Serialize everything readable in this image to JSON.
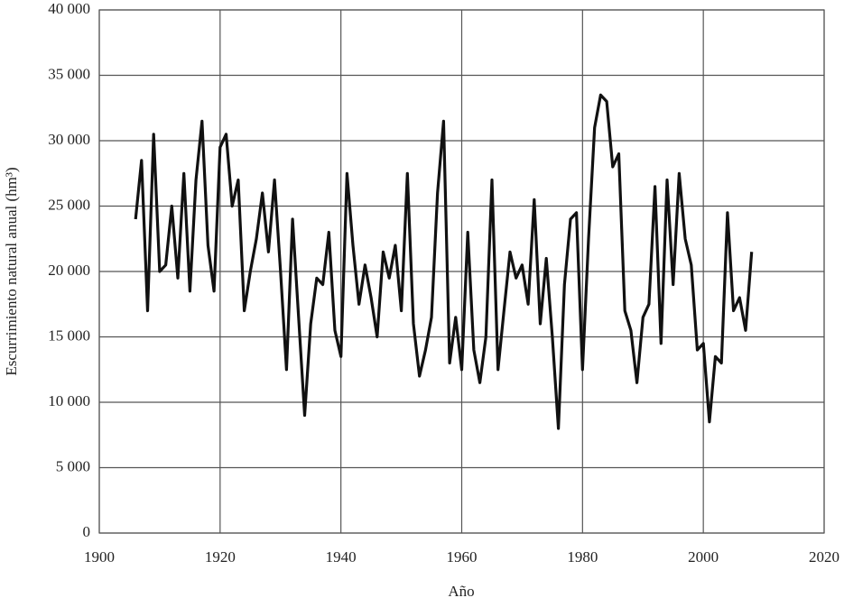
{
  "chart_data": {
    "type": "line",
    "xlabel": "Año",
    "ylabel": "Escurrimiento natural anual (hm³)",
    "x": [
      1906,
      1907,
      1908,
      1909,
      1910,
      1911,
      1912,
      1913,
      1914,
      1915,
      1916,
      1917,
      1918,
      1919,
      1920,
      1921,
      1922,
      1923,
      1924,
      1925,
      1926,
      1927,
      1928,
      1929,
      1930,
      1931,
      1932,
      1933,
      1934,
      1935,
      1936,
      1937,
      1938,
      1939,
      1940,
      1941,
      1942,
      1943,
      1944,
      1945,
      1946,
      1947,
      1948,
      1949,
      1950,
      1951,
      1952,
      1953,
      1954,
      1955,
      1956,
      1957,
      1958,
      1959,
      1960,
      1961,
      1962,
      1963,
      1964,
      1965,
      1966,
      1967,
      1968,
      1969,
      1970,
      1971,
      1972,
      1973,
      1974,
      1975,
      1976,
      1977,
      1978,
      1979,
      1980,
      1981,
      1982,
      1983,
      1984,
      1985,
      1986,
      1987,
      1988,
      1989,
      1990,
      1991,
      1992,
      1993,
      1994,
      1995,
      1996,
      1997,
      1998,
      1999,
      2000,
      2001,
      2002,
      2003,
      2004,
      2005,
      2006,
      2007,
      2008
    ],
    "series": [
      {
        "color": "#111111",
        "values": [
          24000,
          28500,
          17000,
          30500,
          20000,
          20500,
          25000,
          19500,
          27500,
          18500,
          27000,
          31500,
          22000,
          18500,
          29500,
          30500,
          25000,
          27000,
          17000,
          20000,
          22500,
          26000,
          21500,
          27000,
          20000,
          12500,
          24000,
          16500,
          9000,
          16000,
          19500,
          19000,
          23000,
          15500,
          13500,
          27500,
          22000,
          17500,
          20500,
          18000,
          15000,
          21500,
          19500,
          22000,
          17000,
          27500,
          16000,
          12000,
          14000,
          16500,
          26000,
          31500,
          13000,
          16500,
          12500,
          23000,
          14000,
          11500,
          15000,
          27000,
          12500,
          17000,
          21500,
          19500,
          20500,
          17500,
          25500,
          16000,
          21000,
          15000,
          8000,
          19000,
          24000,
          24500,
          12500,
          22500,
          31000,
          33500,
          33000,
          28000,
          29000,
          17000,
          15500,
          11500,
          16500,
          17500,
          26500,
          14500,
          27000,
          19000,
          27500,
          22500,
          20500,
          14000,
          14500,
          8500,
          13500,
          13000,
          24500,
          17000,
          18000,
          15500,
          21500
        ]
      }
    ],
    "xlim": [
      1900,
      2020
    ],
    "xticks": [
      1900,
      1920,
      1940,
      1960,
      1980,
      2000,
      2020
    ],
    "ylim": [
      0,
      40000
    ],
    "yticks": [
      0,
      {
        "value": 5000,
        "label": "5 000"
      },
      {
        "value": 10000,
        "label": "10 000"
      },
      {
        "value": 15000,
        "label": "15 000"
      },
      {
        "value": 20000,
        "label": "20 000"
      },
      {
        "value": 25000,
        "label": "25 000"
      },
      {
        "value": 30000,
        "label": "30 000"
      },
      {
        "value": 35000,
        "label": "35 000"
      },
      {
        "value": 40000,
        "label": "40 000"
      }
    ],
    "grid": true
  }
}
